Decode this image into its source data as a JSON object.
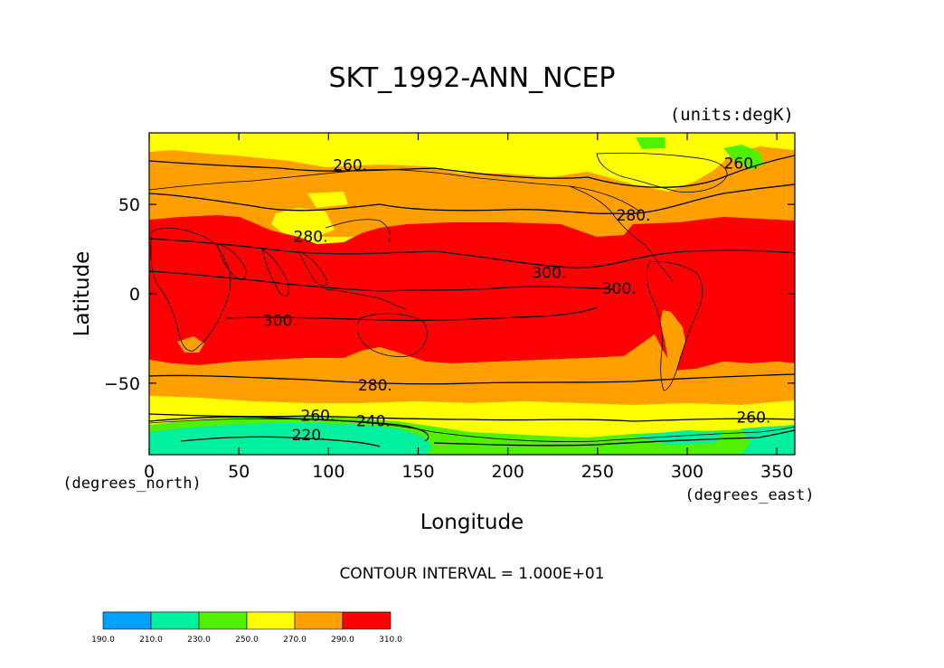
{
  "title": "SKT_1992-ANN_NCEP",
  "units_label": "(units:degK)",
  "x_axis": {
    "label": "Longitude",
    "units": "(degrees_east)",
    "ticks": [
      "0",
      "50",
      "100",
      "150",
      "200",
      "250",
      "300",
      "350"
    ],
    "tick_values": [
      0,
      50,
      100,
      150,
      200,
      250,
      300,
      350
    ],
    "range": [
      0,
      360
    ]
  },
  "y_axis": {
    "label": "Latitude",
    "units": "(degrees_north)",
    "ticks": [
      "50",
      "0",
      "−50"
    ],
    "tick_values": [
      50,
      0,
      -50
    ],
    "range": [
      -90,
      90
    ]
  },
  "contour_interval": "CONTOUR INTERVAL = 1.000E+01",
  "contour_labels": [
    {
      "text": "260.",
      "lon": 112,
      "lat": 72
    },
    {
      "text": "260.",
      "lon": 330,
      "lat": 73
    },
    {
      "text": "280.",
      "lon": 270,
      "lat": 44
    },
    {
      "text": "280.",
      "lon": 90,
      "lat": 32
    },
    {
      "text": "300.",
      "lon": 223,
      "lat": 12
    },
    {
      "text": "300.",
      "lon": 262,
      "lat": 3
    },
    {
      "text": "300.",
      "lon": 73,
      "lat": -15
    },
    {
      "text": "280.",
      "lon": 126,
      "lat": -51
    },
    {
      "text": "260.",
      "lon": 94,
      "lat": -68
    },
    {
      "text": "240.",
      "lon": 125,
      "lat": -71
    },
    {
      "text": "220.",
      "lon": 89,
      "lat": -79
    },
    {
      "text": "260.",
      "lon": 337,
      "lat": -69
    }
  ],
  "colorbar": {
    "colors": [
      "#00a0ff",
      "#00f0a0",
      "#50f000",
      "#ffff00",
      "#ffa000",
      "#ff0000"
    ],
    "labels": [
      "190.0",
      "210.0",
      "230.0",
      "250.0",
      "270.0",
      "290.0",
      "310.0"
    ]
  },
  "colors": {
    "red": "#ff0000",
    "orange": "#ffa000",
    "yellow": "#ffff00",
    "green": "#50f000",
    "cyan": "#00f0a0"
  }
}
